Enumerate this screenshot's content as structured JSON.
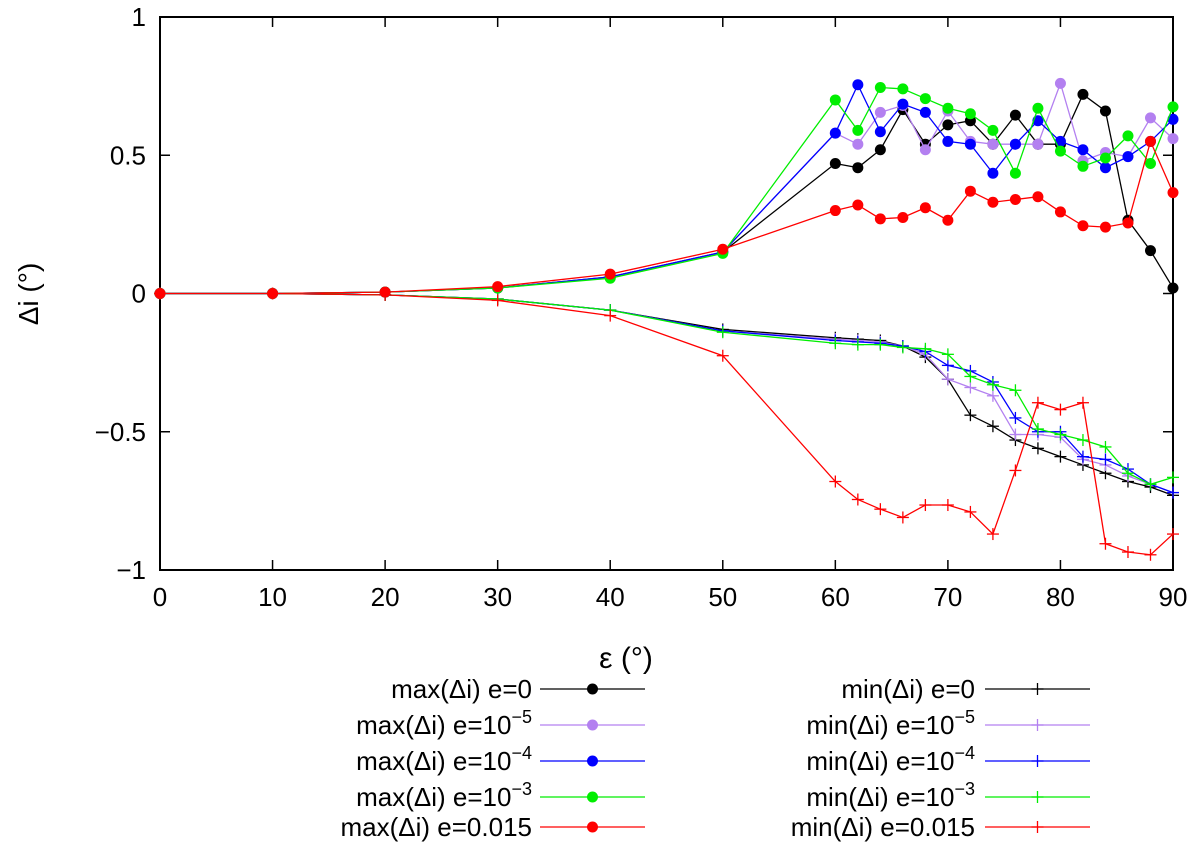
{
  "chart_data": {
    "type": "line",
    "title": "",
    "xlabel": "ε (°)",
    "ylabel": "Δi (°)",
    "xlim": [
      0,
      90
    ],
    "ylim": [
      -1,
      1
    ],
    "xticks": [
      0,
      10,
      20,
      30,
      40,
      50,
      60,
      70,
      80,
      90
    ],
    "yticks": [
      -1,
      -0.5,
      0,
      0.5,
      1
    ],
    "ytick_labels": [
      "−1",
      "−0.5",
      "0",
      "0.5",
      "1"
    ],
    "grid": false,
    "legend_placement": "bottom, outside, two columns",
    "x": [
      0,
      10,
      20,
      30,
      40,
      50,
      60,
      62,
      64,
      66,
      68,
      70,
      72,
      74,
      76,
      78,
      80,
      82,
      84,
      86,
      88,
      90
    ],
    "series": [
      {
        "name": "max(Δi) e=0",
        "label": "max(Δi) e=0",
        "sup": "",
        "color": "#000000",
        "marker": "circle",
        "values": [
          0,
          0,
          0.005,
          0.02,
          0.06,
          0.15,
          0.47,
          0.455,
          0.52,
          0.665,
          0.54,
          0.61,
          0.625,
          0.54,
          0.645,
          0.54,
          0.54,
          0.72,
          0.66,
          0.265,
          0.155,
          0.02
        ]
      },
      {
        "name": "max(Δi) e=10^-5",
        "label": "max(Δi) e=10",
        "sup": "−5",
        "color": "#b380f0",
        "marker": "circle",
        "values": [
          0,
          0,
          0.005,
          0.02,
          0.06,
          0.15,
          0.58,
          0.54,
          0.655,
          0.68,
          0.52,
          0.66,
          0.55,
          0.54,
          0.54,
          0.54,
          0.76,
          0.48,
          0.51,
          0.495,
          0.635,
          0.56
        ]
      },
      {
        "name": "max(Δi) e=10^-4",
        "label": "max(Δi) e=10",
        "sup": "−4",
        "color": "#0000ff",
        "marker": "circle",
        "values": [
          0,
          0,
          0.005,
          0.02,
          0.06,
          0.15,
          0.58,
          0.755,
          0.585,
          0.685,
          0.655,
          0.55,
          0.54,
          0.435,
          0.54,
          0.625,
          0.55,
          0.52,
          0.455,
          0.495,
          0.55,
          0.63
        ]
      },
      {
        "name": "max(Δi) e=10^-3",
        "label": "max(Δi) e=10",
        "sup": "−3",
        "color": "#00ee00",
        "marker": "circle",
        "values": [
          0,
          0,
          0.005,
          0.02,
          0.055,
          0.145,
          0.7,
          0.59,
          0.745,
          0.74,
          0.705,
          0.67,
          0.65,
          0.59,
          0.435,
          0.67,
          0.515,
          0.46,
          0.49,
          0.57,
          0.47,
          0.675
        ]
      },
      {
        "name": "max(Δi) e=0.015",
        "label": "max(Δi) e=0.015",
        "sup": "",
        "color": "#ff0000",
        "marker": "circle",
        "values": [
          0,
          0,
          0.005,
          0.025,
          0.07,
          0.16,
          0.3,
          0.32,
          0.27,
          0.275,
          0.31,
          0.265,
          0.37,
          0.33,
          0.34,
          0.35,
          0.295,
          0.245,
          0.24,
          0.255,
          0.55,
          0.365
        ]
      },
      {
        "name": "min(Δi) e=0",
        "label": "min(Δi) e=0",
        "sup": "",
        "color": "#000000",
        "marker": "plus",
        "values": [
          0,
          0,
          -0.005,
          -0.02,
          -0.06,
          -0.13,
          -0.16,
          -0.165,
          -0.17,
          -0.19,
          -0.23,
          -0.31,
          -0.44,
          -0.48,
          -0.53,
          -0.56,
          -0.59,
          -0.62,
          -0.65,
          -0.68,
          -0.7,
          -0.73
        ]
      },
      {
        "name": "min(Δi) e=10^-5",
        "label": "min(Δi) e=10",
        "sup": "−5",
        "color": "#b380f0",
        "marker": "plus",
        "values": [
          0,
          0,
          -0.005,
          -0.02,
          -0.06,
          -0.135,
          -0.165,
          -0.17,
          -0.175,
          -0.19,
          -0.22,
          -0.31,
          -0.34,
          -0.37,
          -0.51,
          -0.51,
          -0.52,
          -0.6,
          -0.62,
          -0.66,
          -0.69,
          -0.72
        ]
      },
      {
        "name": "min(Δi) e=10^-4",
        "label": "min(Δi) e=10",
        "sup": "−4",
        "color": "#0000ff",
        "marker": "plus",
        "values": [
          0,
          0,
          -0.005,
          -0.02,
          -0.06,
          -0.135,
          -0.17,
          -0.175,
          -0.18,
          -0.19,
          -0.21,
          -0.26,
          -0.28,
          -0.32,
          -0.45,
          -0.5,
          -0.5,
          -0.59,
          -0.6,
          -0.635,
          -0.69,
          -0.72
        ]
      },
      {
        "name": "min(Δi) e=10^-3",
        "label": "min(Δi) e=10",
        "sup": "−3",
        "color": "#00ee00",
        "marker": "plus",
        "values": [
          0,
          0,
          -0.005,
          -0.02,
          -0.06,
          -0.14,
          -0.18,
          -0.185,
          -0.185,
          -0.195,
          -0.2,
          -0.22,
          -0.3,
          -0.33,
          -0.35,
          -0.49,
          -0.51,
          -0.53,
          -0.555,
          -0.65,
          -0.69,
          -0.665
        ]
      },
      {
        "name": "min(Δi) e=0.015",
        "label": "min(Δi) e=0.015",
        "sup": "",
        "color": "#ff0000",
        "marker": "plus",
        "values": [
          0,
          0,
          -0.005,
          -0.025,
          -0.08,
          -0.225,
          -0.68,
          -0.745,
          -0.78,
          -0.81,
          -0.765,
          -0.765,
          -0.79,
          -0.87,
          -0.64,
          -0.395,
          -0.42,
          -0.395,
          -0.905,
          -0.935,
          -0.945,
          -0.87
        ]
      }
    ]
  }
}
